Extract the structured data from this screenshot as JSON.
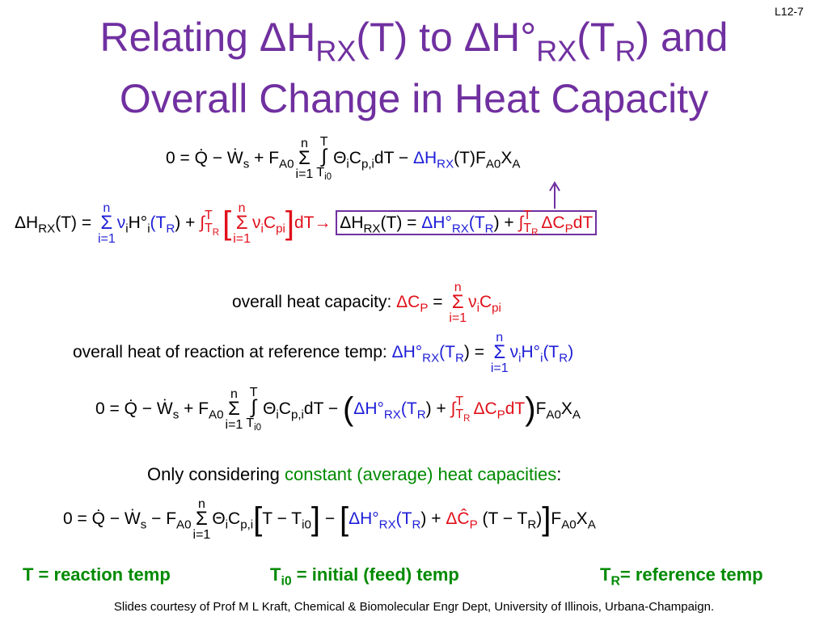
{
  "slide_number": "L12-7",
  "title": {
    "line1": [
      "Relating ΔH",
      "RX",
      "(T) to ΔH°",
      "RX",
      "(T",
      "R",
      ") and"
    ],
    "line2": "Overall Change in Heat Capacity"
  },
  "equations": {
    "energy_balance": [
      "0 = Q̇ − Ẇ",
      "s",
      " + F",
      "A0",
      "n",
      "Σ",
      "i=1",
      "T",
      "∫",
      "T",
      "i0",
      "Θ",
      "i",
      "C",
      "p,i",
      "dT − ",
      "ΔH",
      "RX",
      "(T)",
      "F",
      "A0",
      "X",
      "A"
    ],
    "heat_of_reaction": [
      "ΔH",
      "RX",
      "(T) = ",
      "n",
      "Σ",
      "i=1",
      "ν",
      "i",
      "H°",
      "i",
      "(T",
      "R",
      ") + ",
      "T",
      "∫",
      "T",
      "R",
      "[",
      "n",
      "Σ",
      "i=1",
      "ν",
      "i",
      "C",
      "pi",
      "]",
      "dT→ ",
      "ΔH",
      "RX",
      "(T) = ",
      "ΔH°",
      "RX",
      "(T",
      "R",
      ") + ",
      "T",
      "∫",
      "T",
      "R",
      "ΔC",
      "P",
      "dT"
    ],
    "energy_balance_substituted": [
      "0 = Q̇ − Ẇ",
      "s",
      " + F",
      "A0",
      "n",
      "Σ",
      "i=1",
      "T",
      "∫",
      "T",
      "i0",
      "Θ",
      "i",
      "C",
      "p,i",
      "dT − ",
      "(",
      "ΔH°",
      "RX",
      "(T",
      "R",
      ") + ",
      "T",
      "∫",
      "T",
      "R",
      "ΔC",
      "P",
      "dT",
      ")",
      "F",
      "A0",
      "X",
      "A"
    ],
    "energy_balance_constant_cp": [
      "0 = Q̇ − Ẇ",
      "s",
      " − F",
      "A0",
      "n",
      "Σ",
      "i=1",
      "Θ",
      "i",
      "C",
      "p,i",
      "[",
      "T − T",
      "i0",
      "]",
      " − ",
      "[",
      "ΔH°",
      "RX",
      "(T",
      "R",
      ") + ",
      "ΔĈ",
      "P",
      " (T − T",
      "R",
      ")",
      "]",
      "F",
      "A0",
      "X",
      "A"
    ]
  },
  "overall_heat_capacity": [
    "overall heat capacity: ",
    "ΔC",
    "P",
    " = ",
    "n",
    "Σ",
    "i=1",
    "ν",
    "i",
    "C",
    "pi"
  ],
  "overall_heat_of_reaction": [
    "overall heat of reaction at reference temp: ",
    "ΔH°",
    "RX",
    "(T",
    "R",
    ") = ",
    "n",
    "Σ",
    "i=1",
    "ν",
    "i",
    "H°",
    "i",
    "(T",
    "R",
    ")"
  ],
  "constant_note": [
    "Only considering ",
    "constant (average) heat capacities",
    ":"
  ],
  "definitions": [
    [
      "T = reaction temp"
    ],
    [
      "T",
      "i0",
      " = initial (feed) temp"
    ],
    [
      "T",
      "R",
      "= reference temp"
    ]
  ],
  "footer": "Slides courtesy of Prof M L Kraft, Chemical & Biomolecular Engr Dept, University of Illinois, Urbana-Champaign."
}
